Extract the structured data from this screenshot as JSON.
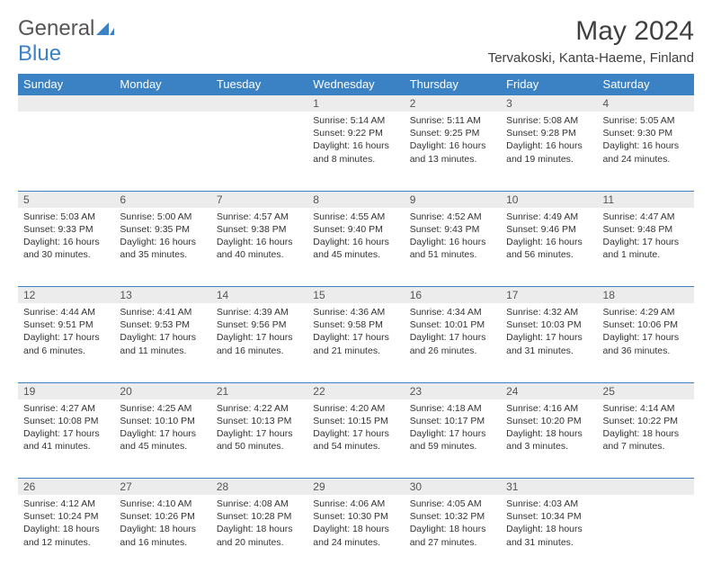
{
  "branding": {
    "word1": "General",
    "word2": "Blue",
    "icon_color": "#3b82c4"
  },
  "title": "May 2024",
  "location": "Tervakoski, Kanta-Haeme, Finland",
  "colors": {
    "header_bg": "#3b82c4",
    "header_text": "#ffffff",
    "daynum_bg": "#ececec",
    "border": "#3b82c4",
    "body_text": "#333333"
  },
  "weekdays": [
    "Sunday",
    "Monday",
    "Tuesday",
    "Wednesday",
    "Thursday",
    "Friday",
    "Saturday"
  ],
  "weeks": [
    [
      {
        "day": "",
        "sunrise": "",
        "sunset": "",
        "daylight": ""
      },
      {
        "day": "",
        "sunrise": "",
        "sunset": "",
        "daylight": ""
      },
      {
        "day": "",
        "sunrise": "",
        "sunset": "",
        "daylight": ""
      },
      {
        "day": "1",
        "sunrise": "Sunrise: 5:14 AM",
        "sunset": "Sunset: 9:22 PM",
        "daylight": "Daylight: 16 hours and 8 minutes."
      },
      {
        "day": "2",
        "sunrise": "Sunrise: 5:11 AM",
        "sunset": "Sunset: 9:25 PM",
        "daylight": "Daylight: 16 hours and 13 minutes."
      },
      {
        "day": "3",
        "sunrise": "Sunrise: 5:08 AM",
        "sunset": "Sunset: 9:28 PM",
        "daylight": "Daylight: 16 hours and 19 minutes."
      },
      {
        "day": "4",
        "sunrise": "Sunrise: 5:05 AM",
        "sunset": "Sunset: 9:30 PM",
        "daylight": "Daylight: 16 hours and 24 minutes."
      }
    ],
    [
      {
        "day": "5",
        "sunrise": "Sunrise: 5:03 AM",
        "sunset": "Sunset: 9:33 PM",
        "daylight": "Daylight: 16 hours and 30 minutes."
      },
      {
        "day": "6",
        "sunrise": "Sunrise: 5:00 AM",
        "sunset": "Sunset: 9:35 PM",
        "daylight": "Daylight: 16 hours and 35 minutes."
      },
      {
        "day": "7",
        "sunrise": "Sunrise: 4:57 AM",
        "sunset": "Sunset: 9:38 PM",
        "daylight": "Daylight: 16 hours and 40 minutes."
      },
      {
        "day": "8",
        "sunrise": "Sunrise: 4:55 AM",
        "sunset": "Sunset: 9:40 PM",
        "daylight": "Daylight: 16 hours and 45 minutes."
      },
      {
        "day": "9",
        "sunrise": "Sunrise: 4:52 AM",
        "sunset": "Sunset: 9:43 PM",
        "daylight": "Daylight: 16 hours and 51 minutes."
      },
      {
        "day": "10",
        "sunrise": "Sunrise: 4:49 AM",
        "sunset": "Sunset: 9:46 PM",
        "daylight": "Daylight: 16 hours and 56 minutes."
      },
      {
        "day": "11",
        "sunrise": "Sunrise: 4:47 AM",
        "sunset": "Sunset: 9:48 PM",
        "daylight": "Daylight: 17 hours and 1 minute."
      }
    ],
    [
      {
        "day": "12",
        "sunrise": "Sunrise: 4:44 AM",
        "sunset": "Sunset: 9:51 PM",
        "daylight": "Daylight: 17 hours and 6 minutes."
      },
      {
        "day": "13",
        "sunrise": "Sunrise: 4:41 AM",
        "sunset": "Sunset: 9:53 PM",
        "daylight": "Daylight: 17 hours and 11 minutes."
      },
      {
        "day": "14",
        "sunrise": "Sunrise: 4:39 AM",
        "sunset": "Sunset: 9:56 PM",
        "daylight": "Daylight: 17 hours and 16 minutes."
      },
      {
        "day": "15",
        "sunrise": "Sunrise: 4:36 AM",
        "sunset": "Sunset: 9:58 PM",
        "daylight": "Daylight: 17 hours and 21 minutes."
      },
      {
        "day": "16",
        "sunrise": "Sunrise: 4:34 AM",
        "sunset": "Sunset: 10:01 PM",
        "daylight": "Daylight: 17 hours and 26 minutes."
      },
      {
        "day": "17",
        "sunrise": "Sunrise: 4:32 AM",
        "sunset": "Sunset: 10:03 PM",
        "daylight": "Daylight: 17 hours and 31 minutes."
      },
      {
        "day": "18",
        "sunrise": "Sunrise: 4:29 AM",
        "sunset": "Sunset: 10:06 PM",
        "daylight": "Daylight: 17 hours and 36 minutes."
      }
    ],
    [
      {
        "day": "19",
        "sunrise": "Sunrise: 4:27 AM",
        "sunset": "Sunset: 10:08 PM",
        "daylight": "Daylight: 17 hours and 41 minutes."
      },
      {
        "day": "20",
        "sunrise": "Sunrise: 4:25 AM",
        "sunset": "Sunset: 10:10 PM",
        "daylight": "Daylight: 17 hours and 45 minutes."
      },
      {
        "day": "21",
        "sunrise": "Sunrise: 4:22 AM",
        "sunset": "Sunset: 10:13 PM",
        "daylight": "Daylight: 17 hours and 50 minutes."
      },
      {
        "day": "22",
        "sunrise": "Sunrise: 4:20 AM",
        "sunset": "Sunset: 10:15 PM",
        "daylight": "Daylight: 17 hours and 54 minutes."
      },
      {
        "day": "23",
        "sunrise": "Sunrise: 4:18 AM",
        "sunset": "Sunset: 10:17 PM",
        "daylight": "Daylight: 17 hours and 59 minutes."
      },
      {
        "day": "24",
        "sunrise": "Sunrise: 4:16 AM",
        "sunset": "Sunset: 10:20 PM",
        "daylight": "Daylight: 18 hours and 3 minutes."
      },
      {
        "day": "25",
        "sunrise": "Sunrise: 4:14 AM",
        "sunset": "Sunset: 10:22 PM",
        "daylight": "Daylight: 18 hours and 7 minutes."
      }
    ],
    [
      {
        "day": "26",
        "sunrise": "Sunrise: 4:12 AM",
        "sunset": "Sunset: 10:24 PM",
        "daylight": "Daylight: 18 hours and 12 minutes."
      },
      {
        "day": "27",
        "sunrise": "Sunrise: 4:10 AM",
        "sunset": "Sunset: 10:26 PM",
        "daylight": "Daylight: 18 hours and 16 minutes."
      },
      {
        "day": "28",
        "sunrise": "Sunrise: 4:08 AM",
        "sunset": "Sunset: 10:28 PM",
        "daylight": "Daylight: 18 hours and 20 minutes."
      },
      {
        "day": "29",
        "sunrise": "Sunrise: 4:06 AM",
        "sunset": "Sunset: 10:30 PM",
        "daylight": "Daylight: 18 hours and 24 minutes."
      },
      {
        "day": "30",
        "sunrise": "Sunrise: 4:05 AM",
        "sunset": "Sunset: 10:32 PM",
        "daylight": "Daylight: 18 hours and 27 minutes."
      },
      {
        "day": "31",
        "sunrise": "Sunrise: 4:03 AM",
        "sunset": "Sunset: 10:34 PM",
        "daylight": "Daylight: 18 hours and 31 minutes."
      },
      {
        "day": "",
        "sunrise": "",
        "sunset": "",
        "daylight": ""
      }
    ]
  ]
}
